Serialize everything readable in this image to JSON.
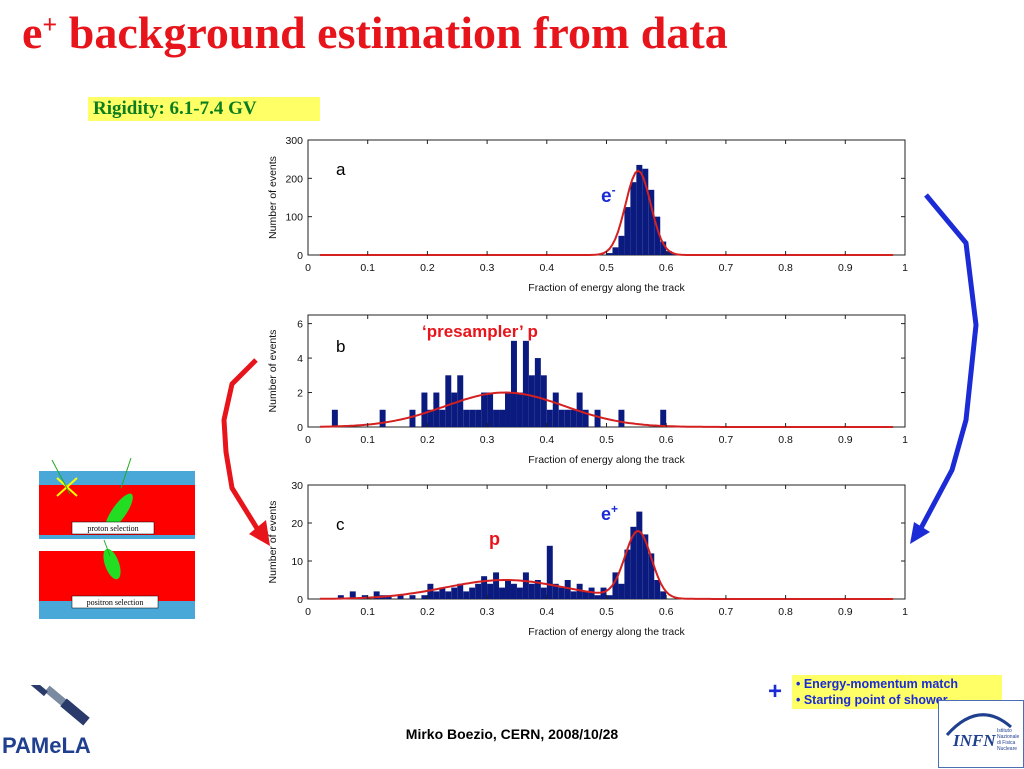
{
  "slide": {
    "title_main": "e",
    "title_sup": "+",
    "title_rest": " background estimation from data",
    "rigidity": "Rigidity: 6.1-7.4 GV",
    "footer": "Mirko Boezio, CERN, 2008/10/28",
    "plus_sign": "+",
    "legend": [
      "• Energy-momentum match",
      "• Starting point of shower"
    ],
    "inset_labels": [
      "proton selection",
      "positron selection"
    ],
    "logo_left_text": "PAMeLA",
    "logo_right_text": "INFN",
    "logo_right_small": [
      "Istituto Nazionale",
      "di Fisica Nucleare"
    ],
    "annotations": {
      "a": "e",
      "a_sup": "-",
      "b": "‘presampler’ p",
      "c_e": "e",
      "c_e_sup": "+",
      "c_p": "p"
    },
    "colors": {
      "title": "#e8141b",
      "bars": "#0b1a7e",
      "fit": "#d42020",
      "arrow_red": "#e8141b",
      "arrow_blue": "#1b2bd6",
      "highlight": "#ffff66"
    }
  },
  "chart_data": [
    {
      "type": "bar",
      "panel": "a",
      "xlabel": "Fraction of energy along the track",
      "ylabel": "Number of events",
      "xlim": [
        0,
        1
      ],
      "ylim": [
        0,
        300
      ],
      "xticks": [
        "0",
        "0.1",
        "0.2",
        "0.3",
        "0.4",
        "0.5",
        "0.6",
        "0.7",
        "0.8",
        "0.9",
        "1"
      ],
      "yticks": [
        0,
        100,
        200,
        300
      ],
      "bin_width": 0.01,
      "bins": [
        [
          0.5,
          5
        ],
        [
          0.51,
          20
        ],
        [
          0.52,
          50
        ],
        [
          0.53,
          125
        ],
        [
          0.54,
          190
        ],
        [
          0.55,
          235
        ],
        [
          0.56,
          225
        ],
        [
          0.57,
          170
        ],
        [
          0.58,
          100
        ],
        [
          0.59,
          35
        ],
        [
          0.6,
          10
        ],
        [
          0.61,
          3
        ]
      ],
      "fit": {
        "components": [
          {
            "amplitude": 220,
            "mean": 0.553,
            "sigma": 0.021
          }
        ]
      }
    },
    {
      "type": "bar",
      "panel": "b",
      "xlabel": "Fraction of energy along the track",
      "ylabel": "Number of events",
      "xlim": [
        0,
        1
      ],
      "ylim": [
        0,
        6.5
      ],
      "xticks": [
        "0",
        "0.1",
        "0.2",
        "0.3",
        "0.4",
        "0.5",
        "0.6",
        "0.7",
        "0.8",
        "0.9",
        "1"
      ],
      "yticks": [
        0,
        2,
        4,
        6
      ],
      "bin_width": 0.01,
      "bins": [
        [
          0.04,
          1
        ],
        [
          0.12,
          1
        ],
        [
          0.17,
          1
        ],
        [
          0.19,
          2
        ],
        [
          0.2,
          1
        ],
        [
          0.21,
          2
        ],
        [
          0.22,
          1
        ],
        [
          0.23,
          3
        ],
        [
          0.24,
          2
        ],
        [
          0.25,
          3
        ],
        [
          0.26,
          1
        ],
        [
          0.27,
          1
        ],
        [
          0.28,
          1
        ],
        [
          0.29,
          2
        ],
        [
          0.3,
          2
        ],
        [
          0.31,
          1
        ],
        [
          0.32,
          1
        ],
        [
          0.33,
          2
        ],
        [
          0.34,
          5
        ],
        [
          0.35,
          2
        ],
        [
          0.36,
          5
        ],
        [
          0.37,
          3
        ],
        [
          0.38,
          4
        ],
        [
          0.39,
          3
        ],
        [
          0.4,
          1
        ],
        [
          0.41,
          2
        ],
        [
          0.42,
          1
        ],
        [
          0.43,
          1
        ],
        [
          0.44,
          1
        ],
        [
          0.45,
          2
        ],
        [
          0.46,
          1
        ],
        [
          0.48,
          1
        ],
        [
          0.52,
          1
        ],
        [
          0.59,
          1
        ]
      ],
      "fit": {
        "components": [
          {
            "amplitude": 2.0,
            "mean": 0.33,
            "sigma": 0.1
          }
        ]
      }
    },
    {
      "type": "bar",
      "panel": "c",
      "xlabel": "Fraction of energy along the track",
      "ylabel": "Number of events",
      "xlim": [
        0,
        1
      ],
      "ylim": [
        0,
        30
      ],
      "xticks": [
        "0",
        "0.1",
        "0.2",
        "0.3",
        "0.4",
        "0.5",
        "0.6",
        "0.7",
        "0.8",
        "0.9",
        "1"
      ],
      "yticks": [
        0,
        10,
        20,
        30
      ],
      "bin_width": 0.01,
      "bins": [
        [
          0.05,
          1
        ],
        [
          0.07,
          2
        ],
        [
          0.09,
          1
        ],
        [
          0.11,
          2
        ],
        [
          0.12,
          1
        ],
        [
          0.13,
          1
        ],
        [
          0.15,
          1
        ],
        [
          0.17,
          1
        ],
        [
          0.19,
          1
        ],
        [
          0.2,
          4
        ],
        [
          0.21,
          2
        ],
        [
          0.22,
          3
        ],
        [
          0.23,
          2
        ],
        [
          0.24,
          3
        ],
        [
          0.25,
          4
        ],
        [
          0.26,
          2
        ],
        [
          0.27,
          3
        ],
        [
          0.28,
          4
        ],
        [
          0.29,
          6
        ],
        [
          0.3,
          4
        ],
        [
          0.31,
          7
        ],
        [
          0.32,
          3
        ],
        [
          0.33,
          5
        ],
        [
          0.34,
          4
        ],
        [
          0.35,
          3
        ],
        [
          0.36,
          7
        ],
        [
          0.37,
          4
        ],
        [
          0.38,
          5
        ],
        [
          0.39,
          3
        ],
        [
          0.4,
          14
        ],
        [
          0.41,
          4
        ],
        [
          0.42,
          3
        ],
        [
          0.43,
          5
        ],
        [
          0.44,
          2
        ],
        [
          0.45,
          4
        ],
        [
          0.46,
          2
        ],
        [
          0.47,
          3
        ],
        [
          0.48,
          1
        ],
        [
          0.49,
          3
        ],
        [
          0.5,
          1
        ],
        [
          0.51,
          7
        ],
        [
          0.52,
          4
        ],
        [
          0.53,
          13
        ],
        [
          0.54,
          19
        ],
        [
          0.55,
          23
        ],
        [
          0.56,
          17
        ],
        [
          0.57,
          12
        ],
        [
          0.58,
          5
        ],
        [
          0.59,
          2
        ]
      ],
      "fit": {
        "components": [
          {
            "amplitude": 5.0,
            "mean": 0.33,
            "sigma": 0.1
          },
          {
            "amplitude": 17.5,
            "mean": 0.553,
            "sigma": 0.022
          }
        ]
      }
    }
  ]
}
